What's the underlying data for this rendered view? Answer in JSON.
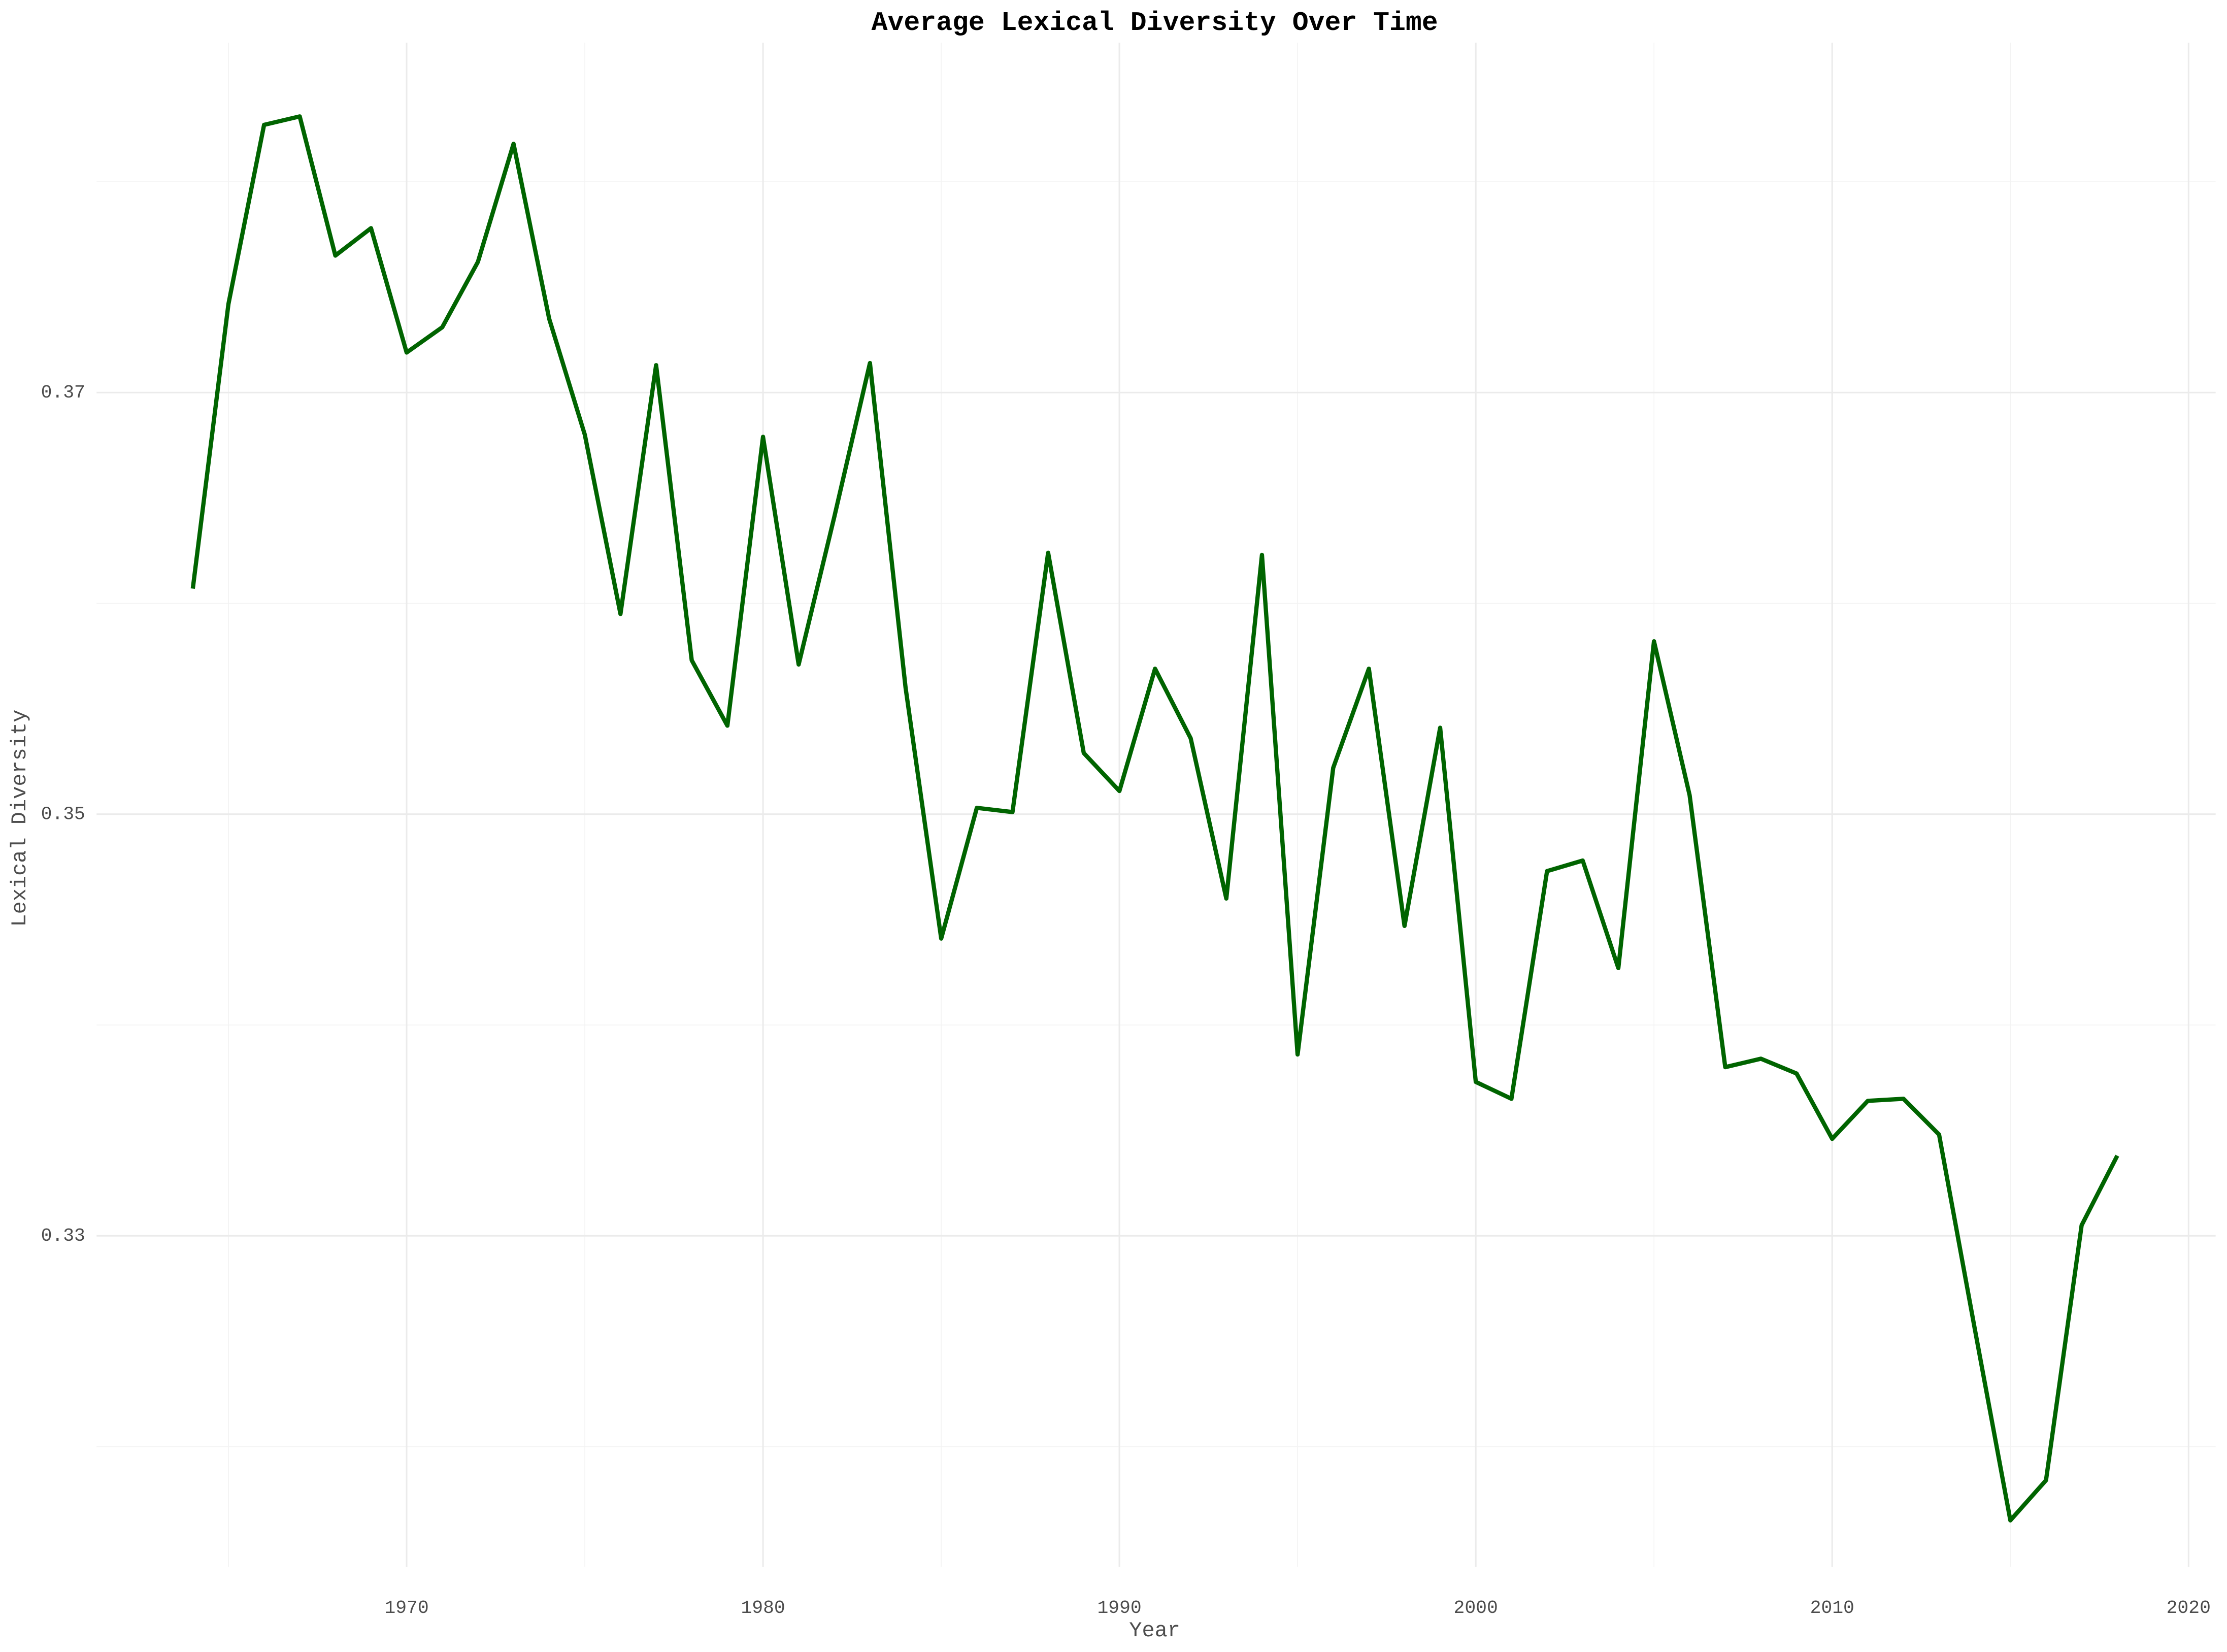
{
  "chart_data": {
    "type": "line",
    "title": "Average Lexical Diversity Over Time",
    "x_label": "Year",
    "y_label": "Lexical Diversity",
    "x": [
      1964,
      1965,
      1966,
      1967,
      1968,
      1969,
      1970,
      1971,
      1972,
      1973,
      1974,
      1975,
      1976,
      1977,
      1978,
      1979,
      1980,
      1981,
      1982,
      1983,
      1984,
      1985,
      1986,
      1987,
      1988,
      1989,
      1990,
      1991,
      1992,
      1993,
      1994,
      1995,
      1996,
      1997,
      1998,
      1999,
      2000,
      2001,
      2002,
      2003,
      2004,
      2005,
      2006,
      2007,
      2008,
      2009,
      2010,
      2011,
      2012,
      2013,
      2014,
      2015,
      2016,
      2017,
      2018
    ],
    "series": [
      {
        "name": "Lexical Diversity",
        "color": "#006400",
        "values": [
          0.3607,
          0.3742,
          0.3827,
          0.3831,
          0.3765,
          0.3778,
          0.3719,
          0.3731,
          0.3762,
          0.3818,
          0.3735,
          0.368,
          0.3595,
          0.3713,
          0.3573,
          0.3542,
          0.3679,
          0.3571,
          0.3641,
          0.3714,
          0.356,
          0.3441,
          0.3503,
          0.3501,
          0.3624,
          0.3529,
          0.3511,
          0.3569,
          0.3536,
          0.346,
          0.3623,
          0.3386,
          0.3522,
          0.3569,
          0.3447,
          0.3541,
          0.3373,
          0.3365,
          0.3473,
          0.3478,
          0.3427,
          0.3582,
          0.3509,
          0.338,
          0.3384,
          0.3377,
          0.3346,
          0.3364,
          0.3365,
          0.3348,
          0.3256,
          0.3165,
          0.3184,
          0.3305,
          0.3338
        ]
      }
    ],
    "xlim": [
      1961.3,
      2020.76
    ],
    "ylim": [
      0.3143,
      0.3866
    ],
    "xticks": [
      1970,
      1980,
      1990,
      2000,
      2010,
      2020
    ],
    "yticks": [
      {
        "value": 0.33,
        "label": "0.33"
      },
      {
        "value": 0.35,
        "label": "0.35"
      },
      {
        "value": 0.37,
        "label": "0.37"
      }
    ],
    "minor_xticks": [
      1965,
      1975,
      1985,
      1995,
      2005,
      2015
    ],
    "minor_yticks": [
      0.32,
      0.34,
      0.36,
      0.38
    ],
    "grid": true
  }
}
